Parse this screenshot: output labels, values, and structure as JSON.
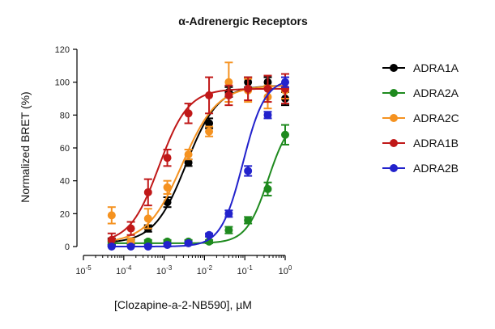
{
  "chart_data": {
    "type": "scatter",
    "title": "α-Adrenergic Receptors",
    "xlabel": "[Clozapine-a-2-NB590], µM",
    "ylabel": "Normalized BRET (%)",
    "xscale": "log",
    "xlim": [
      1e-05,
      1
    ],
    "ylim": [
      0,
      120
    ],
    "x_ticks": [
      1e-05,
      0.0001,
      0.001,
      0.01,
      0.1,
      1
    ],
    "x_tick_labels": [
      {
        "base": "10",
        "exp": "-5"
      },
      {
        "base": "10",
        "exp": "-4"
      },
      {
        "base": "10",
        "exp": "-3"
      },
      {
        "base": "10",
        "exp": "-2"
      },
      {
        "base": "10",
        "exp": "-1"
      },
      {
        "base": "10",
        "exp": "0"
      }
    ],
    "y_ticks": [
      0,
      20,
      40,
      60,
      80,
      100,
      120
    ],
    "grid": false,
    "legend_position": "right",
    "x": [
      5e-05,
      0.00015,
      0.0004,
      0.0012,
      0.004,
      0.013,
      0.04,
      0.12,
      0.37,
      1
    ],
    "series": [
      {
        "name": "ADRA1A",
        "color": "#000000",
        "ec50": 0.0035,
        "bottom": 2,
        "top": 98,
        "hill": 1.1,
        "values": [
          3,
          3,
          11,
          27,
          51,
          75,
          94,
          100,
          100,
          90
        ],
        "errors": [
          2,
          2,
          2,
          3,
          2,
          3,
          3,
          3,
          3,
          4
        ]
      },
      {
        "name": "ADRA2A",
        "color": "#1e8a1e",
        "ec50": 0.38,
        "bottom": 2,
        "top": 80,
        "hill": 1.6,
        "values": [
          3,
          3,
          3,
          3,
          3,
          3,
          10,
          16,
          35,
          68
        ],
        "errors": [
          1,
          1,
          1,
          1,
          1,
          1,
          2,
          2,
          4,
          6
        ]
      },
      {
        "name": "ADRA2C",
        "color": "#f59220",
        "ec50": 0.0028,
        "bottom": 2,
        "top": 98,
        "hill": 1.0,
        "values": [
          19,
          3,
          17,
          36,
          56,
          70,
          100,
          95,
          91,
          95
        ],
        "errors": [
          5,
          2,
          6,
          4,
          3,
          3,
          12,
          7,
          7,
          5
        ]
      },
      {
        "name": "ADRA1B",
        "color": "#c01818",
        "ec50": 0.00075,
        "bottom": 2,
        "top": 96,
        "hill": 1.2,
        "values": [
          4,
          11,
          33,
          54,
          81,
          92,
          92,
          96,
          96,
          96
        ],
        "errors": [
          4,
          4,
          8,
          5,
          6,
          11,
          6,
          7,
          8,
          9
        ]
      },
      {
        "name": "ADRA2B",
        "color": "#2222cc",
        "ec50": 0.09,
        "bottom": 0,
        "top": 102,
        "hill": 1.6,
        "values": [
          0,
          0,
          0,
          1,
          2,
          7,
          20,
          46,
          80,
          100
        ],
        "errors": [
          1,
          1,
          1,
          1,
          1,
          1,
          2,
          3,
          2,
          3
        ]
      }
    ]
  }
}
